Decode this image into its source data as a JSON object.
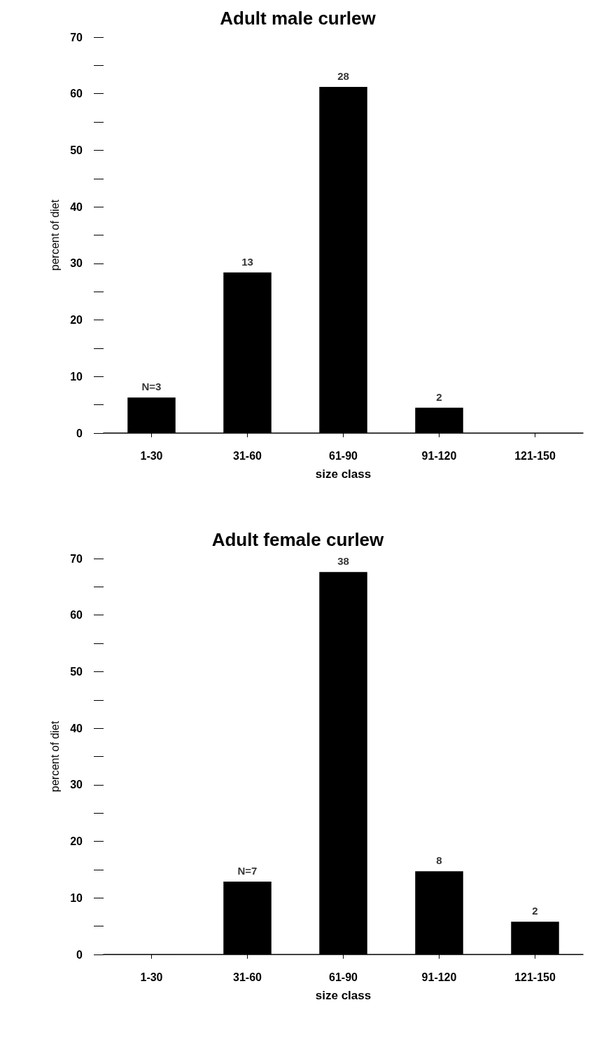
{
  "chart_data": [
    {
      "type": "bar",
      "title": "Adult male curlew",
      "xlabel": "size class",
      "ylabel": "percent of diet",
      "categories": [
        "1-30",
        "31-60",
        "61-90",
        "91-120",
        "121-150"
      ],
      "values": [
        6.3,
        28.4,
        61.2,
        4.5,
        0
      ],
      "annotations": [
        {
          "text": "N=3",
          "x": "1-30",
          "y": 6.3
        },
        {
          "text": "13",
          "x": "31-60",
          "y": 28.4
        },
        {
          "text": "28",
          "x": "61-90",
          "y": 61.2
        },
        {
          "text": "2",
          "x": "91-120",
          "y": 4.5
        }
      ],
      "color": "#000000",
      "ylim": [
        0,
        70
      ],
      "yticks": [
        0,
        {
          "value": 5,
          "label": null
        },
        10,
        {
          "value": 15,
          "label": null
        },
        20,
        {
          "value": 25,
          "label": null
        },
        30,
        {
          "value": 35,
          "label": null
        },
        40,
        {
          "value": 45,
          "label": null
        },
        50,
        {
          "value": 55,
          "label": null
        },
        60,
        {
          "value": 65,
          "label": null
        },
        70
      ],
      "grid": false
    },
    {
      "type": "bar",
      "title": "Adult female curlew",
      "xlabel": "size class",
      "ylabel": "percent of diet",
      "categories": [
        "1-30",
        "31-60",
        "61-90",
        "91-120",
        "121-150"
      ],
      "values": [
        0,
        12.9,
        67.6,
        14.7,
        5.8
      ],
      "annotations": [
        {
          "text": "N=7",
          "x": "31-60",
          "y": 12.9
        },
        {
          "text": "38",
          "x": "61-90",
          "y": 67.6
        },
        {
          "text": "8",
          "x": "91-120",
          "y": 14.7
        },
        {
          "text": "2",
          "x": "121-150",
          "y": 5.8
        }
      ],
      "color": "#000000",
      "ylim": [
        0,
        70
      ],
      "yticks": [
        0,
        {
          "value": 5,
          "label": null
        },
        10,
        {
          "value": 15,
          "label": null
        },
        20,
        {
          "value": 25,
          "label": null
        },
        30,
        {
          "value": 35,
          "label": null
        },
        40,
        {
          "value": 45,
          "label": null
        },
        50,
        {
          "value": 55,
          "label": null
        },
        60,
        {
          "value": 65,
          "label": null
        },
        70
      ],
      "grid": false
    }
  ]
}
